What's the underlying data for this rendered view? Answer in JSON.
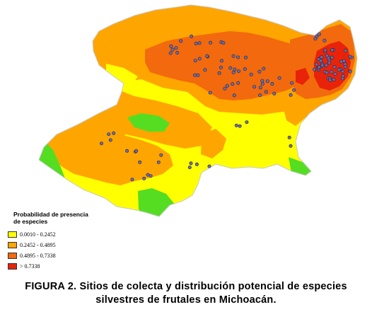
{
  "legend": {
    "title": "Probabilidad de presencia de especies",
    "items": [
      {
        "label": "0.0010 - 0.2452",
        "color": "#ffff00"
      },
      {
        "label": "0.2452 - 0.4895",
        "color": "#ffa500"
      },
      {
        "label": "0.4895 - 0.7338",
        "color": "#f26a0d"
      },
      {
        "label": "> 0.7338",
        "color": "#e8230a"
      }
    ],
    "low_color": "#55dd22"
  },
  "caption": {
    "line1": "FIGURA 2. Sitios de colecta y distribución potencial de especies",
    "line2": "silvestres de frutales en Michoacán."
  },
  "marker": {
    "fill": "#6b6ea6",
    "stroke": "#222244"
  }
}
